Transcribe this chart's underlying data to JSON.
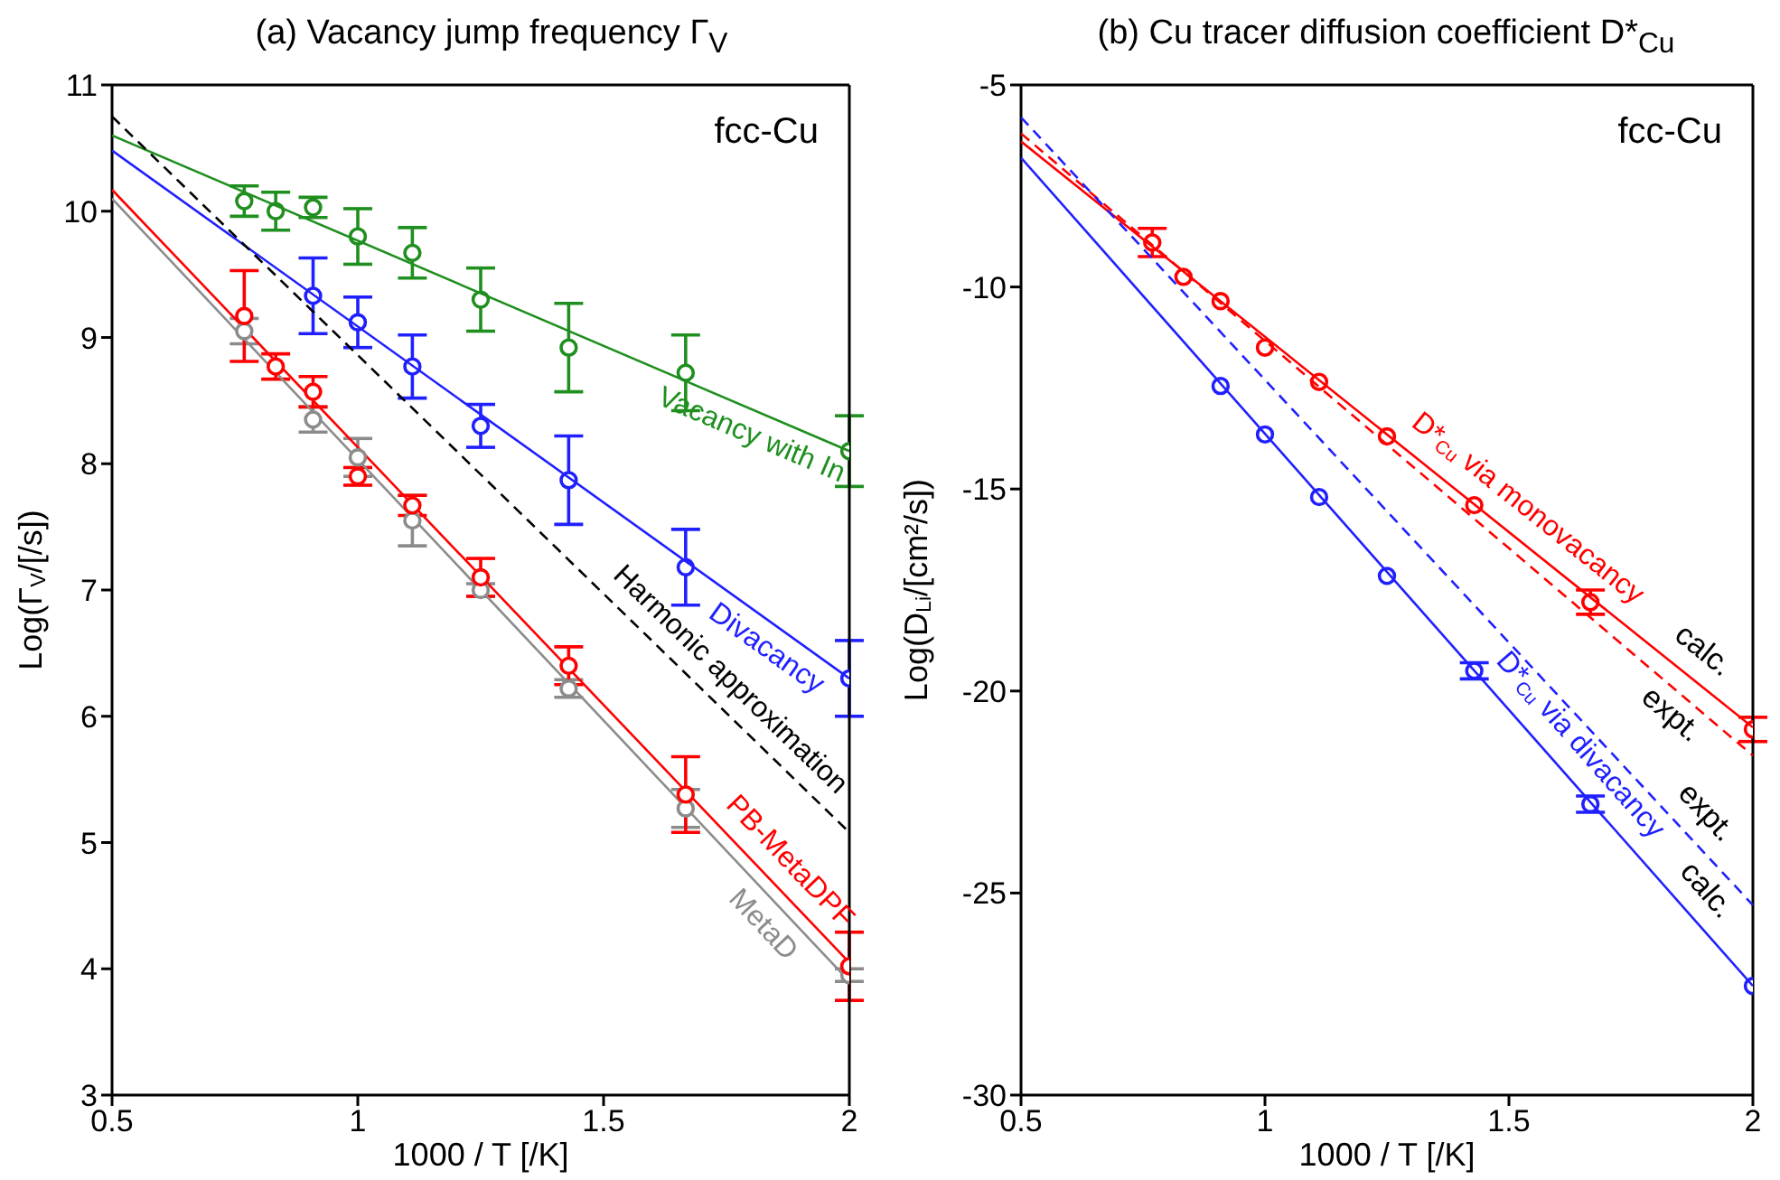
{
  "chart_data": [
    {
      "type": "scatter",
      "title": "(a) Vacancy jump frequency Γ$_{V}$",
      "xlabel": "1000 / T [/K]",
      "ylabel": "Log(Γ$_{V}$/[/s])",
      "xlim": [
        0.5,
        2
      ],
      "xticks": [
        0.5,
        1,
        1.5,
        2
      ],
      "ylim": [
        3,
        11
      ],
      "yticks": [
        3,
        4,
        5,
        6,
        7,
        8,
        9,
        10,
        11
      ],
      "marker": "circle",
      "annotations": [
        "fcc-Cu"
      ],
      "series": [
        {
          "color": "#1f8f1f",
          "x": [
            0.769,
            0.833,
            0.909,
            1.0,
            1.111,
            1.25,
            1.429,
            1.667,
            2.0
          ],
          "values": [
            10.08,
            10.0,
            10.03,
            9.8,
            9.67,
            9.3,
            8.92,
            8.72,
            8.1
          ],
          "errors": [
            0.12,
            0.15,
            0.08,
            0.22,
            0.2,
            0.25,
            0.35,
            0.3,
            0.28
          ]
        },
        {
          "type": "line",
          "marker": "none",
          "name": "Vacancy with In",
          "color": "#1f8f1f",
          "x": [
            0.5,
            2
          ],
          "values": [
            10.6,
            8.1
          ]
        },
        {
          "color": "#2020ff",
          "x": [
            0.909,
            1.0,
            1.111,
            1.25,
            1.429,
            1.667,
            2.0
          ],
          "values": [
            9.33,
            9.12,
            8.77,
            8.3,
            7.87,
            7.18,
            6.3
          ],
          "errors": [
            0.3,
            0.2,
            0.25,
            0.17,
            0.35,
            0.3,
            0.3
          ]
        },
        {
          "type": "line",
          "marker": "none",
          "name": "Divacancy",
          "color": "#2020ff",
          "x": [
            0.5,
            2
          ],
          "values": [
            10.48,
            6.3
          ]
        },
        {
          "type": "line",
          "marker": "none",
          "name": "Harmonic approximation",
          "color": "#000000",
          "line_style": "dashed",
          "x": [
            0.5,
            2
          ],
          "values": [
            10.75,
            5.08
          ]
        },
        {
          "type": "line",
          "marker": "none",
          "name": "MetaD",
          "color": "#8c8c8c",
          "x": [
            0.5,
            2
          ],
          "values": [
            10.1,
            3.9
          ]
        },
        {
          "type": "line",
          "marker": "none",
          "name": "PB-MetaDPF",
          "color": "#ff0000",
          "x": [
            0.5,
            2
          ],
          "values": [
            10.17,
            4.05
          ]
        },
        {
          "color": "#8c8c8c",
          "x": [
            0.769,
            0.833,
            0.909,
            1.0,
            1.111,
            1.25,
            1.429,
            1.667,
            2.0
          ],
          "values": [
            9.05,
            null,
            8.35,
            8.05,
            7.55,
            7.0,
            6.22,
            5.27,
            3.95
          ],
          "errors": [
            0.1,
            null,
            0.1,
            0.15,
            0.2,
            0.05,
            0.07,
            0.15,
            0.05
          ]
        },
        {
          "color": "#ff0000",
          "x": [
            0.769,
            0.833,
            0.909,
            1.0,
            1.111,
            1.25,
            1.429,
            1.667,
            2.0
          ],
          "values": [
            9.17,
            8.77,
            8.57,
            7.9,
            7.67,
            7.1,
            6.4,
            5.38,
            4.02
          ],
          "errors": [
            0.36,
            0.1,
            0.12,
            0.07,
            0.08,
            0.15,
            0.15,
            0.3,
            0.27
          ]
        }
      ]
    },
    {
      "type": "scatter",
      "title": "(b) Cu tracer diffusion coefficient D*$_{Cu}$",
      "xlabel": "1000 / T [/K]",
      "ylabel": "Log(D$_{Li}$/[cm²/s])",
      "xlim": [
        0.5,
        2
      ],
      "xticks": [
        0.5,
        1,
        1.5,
        2
      ],
      "ylim": [
        -30,
        -5
      ],
      "yticks": [
        -30,
        -25,
        -20,
        -15,
        -10,
        -5
      ],
      "marker": "circle",
      "annotations": [
        "fcc-Cu",
        "calc.",
        "expt.",
        "expt.",
        "calc."
      ],
      "series": [
        {
          "color": "#ff0000",
          "x": [
            0.769,
            0.833,
            0.909,
            1.0,
            1.111,
            1.25,
            1.429,
            1.667,
            2.0
          ],
          "values": [
            -8.9,
            -9.75,
            -10.35,
            -11.5,
            -12.35,
            -13.7,
            -15.4,
            -17.8,
            -20.95
          ],
          "errors": [
            0.35,
            null,
            null,
            null,
            null,
            null,
            null,
            0.3,
            0.3
          ]
        },
        {
          "type": "line",
          "marker": "none",
          "name": "D*$_{Cu}$ via monovacancy",
          "color": "#ff0000",
          "x": [
            0.5,
            2
          ],
          "values": [
            -6.4,
            -20.9
          ]
        },
        {
          "type": "line",
          "marker": "none",
          "color": "#ff0000",
          "line_style": "dashed",
          "x": [
            0.5,
            2
          ],
          "values": [
            -6.2,
            -21.6
          ]
        },
        {
          "color": "#2020ff",
          "x": [
            0.909,
            1.0,
            1.111,
            1.25,
            1.429,
            1.667,
            2.0
          ],
          "values": [
            -12.45,
            -13.65,
            -15.2,
            -17.15,
            -19.5,
            -22.8,
            -27.3
          ],
          "errors": [
            null,
            null,
            null,
            null,
            0.2,
            0.2,
            null
          ]
        },
        {
          "type": "line",
          "marker": "none",
          "name": "D*$_{Cu}$ via divacancy",
          "color": "#2020ff",
          "x": [
            0.5,
            2
          ],
          "values": [
            -6.8,
            -27.3
          ]
        },
        {
          "type": "line",
          "marker": "none",
          "color": "#2020ff",
          "line_style": "dashed",
          "x": [
            0.5,
            2
          ],
          "values": [
            -5.8,
            -25.3
          ]
        }
      ]
    }
  ]
}
